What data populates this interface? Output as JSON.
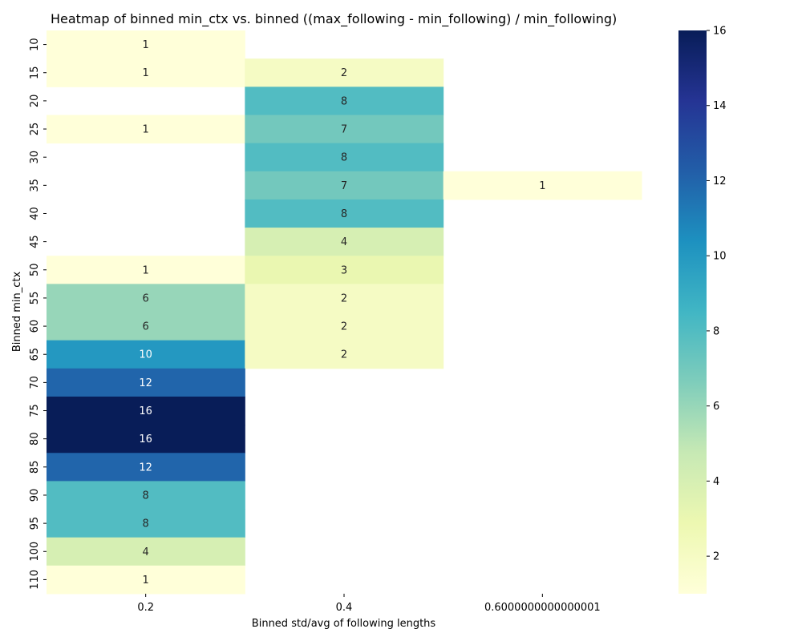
{
  "chart_data": {
    "type": "heatmap",
    "title": "Heatmap of binned min_ctx vs. binned ((max_following - min_following) / min_following)",
    "xlabel": "Binned std/avg of following lengths",
    "ylabel": "Binned min_ctx",
    "x_categories": [
      "0.2",
      "0.4",
      "0.6000000000000001"
    ],
    "y_categories": [
      "10",
      "15",
      "20",
      "25",
      "30",
      "35",
      "40",
      "45",
      "50",
      "55",
      "60",
      "65",
      "70",
      "75",
      "80",
      "85",
      "90",
      "95",
      "100",
      "110"
    ],
    "values": [
      [
        1,
        null,
        null
      ],
      [
        1,
        2,
        null
      ],
      [
        null,
        8,
        null
      ],
      [
        1,
        7,
        null
      ],
      [
        null,
        8,
        null
      ],
      [
        null,
        7,
        1
      ],
      [
        null,
        8,
        null
      ],
      [
        null,
        4,
        null
      ],
      [
        1,
        3,
        null
      ],
      [
        6,
        2,
        null
      ],
      [
        6,
        2,
        null
      ],
      [
        10,
        2,
        null
      ],
      [
        12,
        null,
        null
      ],
      [
        16,
        null,
        null
      ],
      [
        16,
        null,
        null
      ],
      [
        12,
        null,
        null
      ],
      [
        8,
        null,
        null
      ],
      [
        8,
        null,
        null
      ],
      [
        4,
        null,
        null
      ],
      [
        1,
        null,
        null
      ]
    ],
    "colorbar": {
      "colormap": "YlGnBu",
      "min": 1,
      "max": 16,
      "ticks": [
        "2",
        "4",
        "6",
        "8",
        "10",
        "12",
        "14",
        "16"
      ]
    }
  }
}
